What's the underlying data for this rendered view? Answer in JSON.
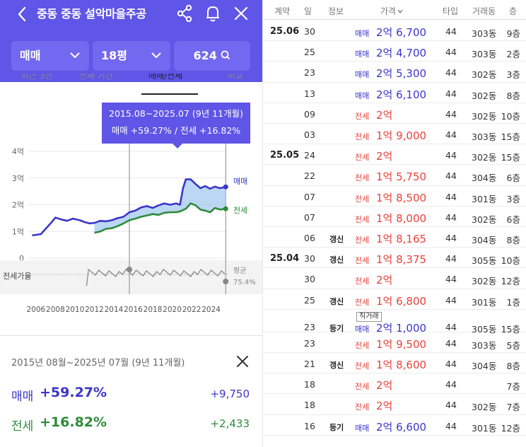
{
  "header": {
    "title": "중동 중동 설악마을주공",
    "back_icon": "chevron-left-icon",
    "share_icon": "share-icon",
    "bell_icon": "bell-icon",
    "close_icon": "close-icon"
  },
  "filters": {
    "trade_type": "매매",
    "size": "18평",
    "count": "624"
  },
  "tabs": [
    "최근 3년",
    "전체 기간",
    "매매/전세",
    "비교"
  ],
  "tooltip": {
    "period": "2015.08~2025.07 (9년 11개월)",
    "summary": "매매 +59.27%  /  전세 +16.82%"
  },
  "chart_data": {
    "type": "line",
    "title": "",
    "xlabel": "",
    "ylabel": "",
    "x_ticks": [
      "2006",
      "2008",
      "2010",
      "2012",
      "2014",
      "2016",
      "2018",
      "2020",
      "2022",
      "2024"
    ],
    "y_ticks": [
      "4억",
      "3억",
      "2억",
      "1억",
      "0"
    ],
    "ylim": [
      0,
      4
    ],
    "xlim": [
      2005.5,
      2025.7
    ],
    "selected_range": [
      2015.6,
      2025.5
    ],
    "series": [
      {
        "name": "매매",
        "color": "#3b36c8",
        "unit": "억",
        "x": [
          2005.6,
          2006.5,
          2007.0,
          2007.5,
          2008.0,
          2008.6,
          2009.2,
          2009.8,
          2010.5,
          2011.0,
          2011.5,
          2012.0,
          2012.6,
          2013.2,
          2013.8,
          2014.4,
          2015.0,
          2015.6,
          2016.2,
          2016.8,
          2017.4,
          2018.0,
          2018.6,
          2019.2,
          2019.8,
          2020.4,
          2020.8,
          2021.1,
          2021.4,
          2021.9,
          2022.4,
          2022.9,
          2023.4,
          2023.9,
          2024.4,
          2024.9,
          2025.5
        ],
        "y": [
          0.85,
          0.9,
          1.1,
          1.3,
          1.52,
          1.45,
          1.4,
          1.48,
          1.42,
          1.35,
          1.3,
          1.32,
          1.4,
          1.38,
          1.42,
          1.5,
          1.55,
          1.72,
          1.78,
          1.9,
          1.95,
          1.88,
          1.98,
          2.05,
          2.0,
          2.05,
          2.0,
          2.6,
          2.95,
          2.95,
          2.78,
          2.62,
          2.7,
          2.6,
          2.68,
          2.62,
          2.67
        ]
      },
      {
        "name": "전세",
        "color": "#2e8b3a",
        "unit": "억",
        "x": [
          2012.0,
          2012.6,
          2013.2,
          2013.8,
          2014.4,
          2015.0,
          2015.6,
          2016.2,
          2016.8,
          2017.4,
          2018.0,
          2018.6,
          2019.2,
          2019.8,
          2020.4,
          2020.8,
          2021.4,
          2021.9,
          2022.4,
          2022.9,
          2023.4,
          2023.9,
          2024.4,
          2024.9,
          2025.5
        ],
        "y": [
          0.95,
          1.0,
          1.1,
          1.12,
          1.2,
          1.3,
          1.42,
          1.48,
          1.55,
          1.6,
          1.65,
          1.62,
          1.7,
          1.72,
          1.72,
          1.75,
          1.85,
          2.05,
          1.98,
          1.82,
          1.78,
          1.72,
          1.88,
          1.82,
          1.85
        ]
      }
    ],
    "sub_chart": {
      "label": "전세가율",
      "avg_label": "평균",
      "avg_value": "75.4%"
    }
  },
  "panel": {
    "range": "2015년 08월~2025년 07월 (9년 11개월)",
    "close_icon": "close-icon",
    "rows": [
      {
        "label": "매매",
        "pct": "+59.27%",
        "diff": "+9,750",
        "color": "#3b36c8"
      },
      {
        "label": "전세",
        "pct": "+16.82%",
        "diff": "+2,433",
        "color": "#2e8b3a"
      }
    ]
  },
  "table": {
    "headers": [
      "계약",
      "일",
      "정보",
      "가격",
      "타입",
      "거래동",
      "층"
    ],
    "sort_icon": "sort-down-icon",
    "rows": [
      {
        "ym": "25.06",
        "day": "30",
        "info": "",
        "type": "매매",
        "price": "2억 6,700",
        "size": "44",
        "dong": "303동",
        "floor": "9층"
      },
      {
        "ym": "",
        "day": "25",
        "info": "",
        "type": "매매",
        "price": "2억 4,700",
        "size": "44",
        "dong": "303동",
        "floor": "2층"
      },
      {
        "ym": "",
        "day": "23",
        "info": "",
        "type": "매매",
        "price": "2억 5,300",
        "size": "44",
        "dong": "302동",
        "floor": "3층"
      },
      {
        "ym": "",
        "day": "13",
        "info": "",
        "type": "매매",
        "price": "2억 6,100",
        "size": "44",
        "dong": "302동",
        "floor": "8층"
      },
      {
        "ym": "",
        "day": "09",
        "info": "",
        "type": "전세",
        "price": "2억",
        "size": "44",
        "dong": "302동",
        "floor": "10층"
      },
      {
        "ym": "",
        "day": "03",
        "info": "",
        "type": "전세",
        "price": "1억 9,000",
        "size": "44",
        "dong": "303동",
        "floor": "15층"
      },
      {
        "ym": "25.05",
        "day": "24",
        "info": "",
        "type": "전세",
        "price": "2억",
        "size": "44",
        "dong": "302동",
        "floor": "15층"
      },
      {
        "ym": "",
        "day": "22",
        "info": "",
        "type": "전세",
        "price": "1억 5,750",
        "size": "44",
        "dong": "304동",
        "floor": "6층"
      },
      {
        "ym": "",
        "day": "07",
        "info": "",
        "type": "전세",
        "price": "1억 8,500",
        "size": "44",
        "dong": "301동",
        "floor": "3층"
      },
      {
        "ym": "",
        "day": "07",
        "info": "",
        "type": "전세",
        "price": "1억 8,000",
        "size": "44",
        "dong": "302동",
        "floor": "6층"
      },
      {
        "ym": "",
        "day": "06",
        "info": "갱신",
        "type": "전세",
        "price": "1억 8,165",
        "size": "44",
        "dong": "304동",
        "floor": "8층"
      },
      {
        "ym": "25.04",
        "day": "30",
        "info": "갱신",
        "type": "전세",
        "price": "1억 8,375",
        "size": "44",
        "dong": "305동",
        "floor": "10층"
      },
      {
        "ym": "",
        "day": "30",
        "info": "",
        "type": "전세",
        "price": "2억",
        "size": "44",
        "dong": "302동",
        "floor": "12층"
      },
      {
        "ym": "",
        "day": "25",
        "info": "갱신",
        "type": "전세",
        "price": "1억 6,800",
        "size": "44",
        "dong": "301동",
        "floor": "1층"
      },
      {
        "ym": "",
        "day": "23",
        "info": "등기",
        "type": "매매",
        "price": "2억 1,000",
        "size": "44",
        "dong": "305동",
        "floor": "15층",
        "tag": "직거래"
      },
      {
        "ym": "",
        "day": "23",
        "info": "",
        "type": "전세",
        "price": "1억 9,500",
        "size": "44",
        "dong": "303동",
        "floor": "5층"
      },
      {
        "ym": "",
        "day": "21",
        "info": "갱신",
        "type": "전세",
        "price": "1억 8,600",
        "size": "44",
        "dong": "304동",
        "floor": "8층"
      },
      {
        "ym": "",
        "day": "18",
        "info": "",
        "type": "전세",
        "price": "2억",
        "size": "44",
        "dong": "",
        "floor": "7층"
      },
      {
        "ym": "",
        "day": "18",
        "info": "",
        "type": "전세",
        "price": "2억",
        "size": "44",
        "dong": "302동",
        "floor": "7층"
      },
      {
        "ym": "",
        "day": "16",
        "info": "등기",
        "type": "매매",
        "price": "2억 6,600",
        "size": "44",
        "dong": "301동",
        "floor": "12층"
      }
    ]
  },
  "colors": {
    "brand": "#5f55e6",
    "sale": "#3b36c8",
    "jeonse": "#e8413a",
    "jeonse_line": "#2e8b3a"
  }
}
